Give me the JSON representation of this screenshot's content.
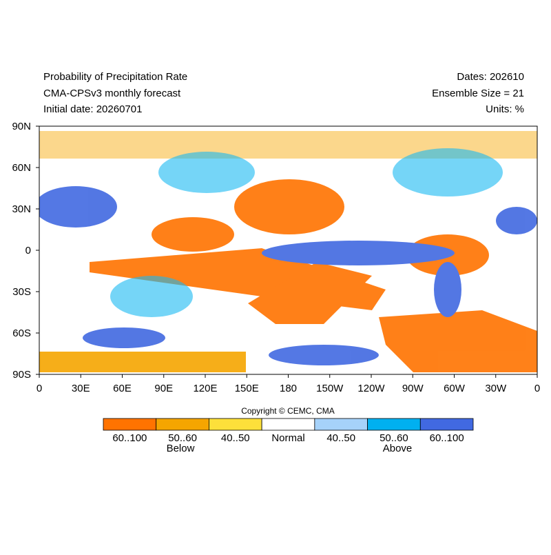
{
  "header": {
    "title": "Probability of Precipitation Rate",
    "model": "CMA-CPSv3 monthly forecast",
    "initial_date": "Initial date: 20260701",
    "dates": "Dates: 202610",
    "ensemble": "Ensemble Size = 21",
    "units": "Units: %"
  },
  "map": {
    "lat_labels": [
      "90N",
      "60N",
      "30N",
      "0",
      "30S",
      "60S",
      "90S"
    ],
    "lon_labels": [
      "0",
      "30E",
      "60E",
      "90E",
      "120E",
      "150E",
      "180",
      "150W",
      "120W",
      "90W",
      "60W",
      "30W",
      "0"
    ]
  },
  "copyright": "Copyright © CEMC, CMA",
  "legend": {
    "items": [
      {
        "label": "60..100",
        "color": "#ff7300"
      },
      {
        "label": "50..60",
        "color": "#f5a500"
      },
      {
        "label": "40..50",
        "color": "#fde03a"
      },
      {
        "label": "Normal",
        "color": "#ffffff"
      },
      {
        "label": "40..50",
        "color": "#a6d2fa"
      },
      {
        "label": "50..60",
        "color": "#00b0f0"
      },
      {
        "label": "60..100",
        "color": "#4169e1"
      }
    ],
    "below": "Below",
    "above": "Above"
  }
}
